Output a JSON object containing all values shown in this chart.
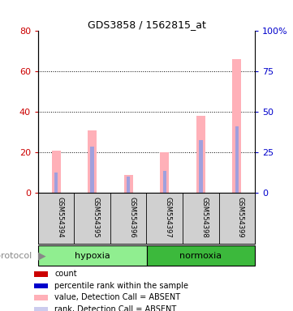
{
  "title": "GDS3858 / 1562815_at",
  "samples": [
    "GSM554394",
    "GSM554395",
    "GSM554396",
    "GSM554397",
    "GSM554398",
    "GSM554399"
  ],
  "groups": [
    "hypoxia",
    "hypoxia",
    "hypoxia",
    "normoxia",
    "normoxia",
    "normoxia"
  ],
  "hypoxia_color": "#90EE90",
  "normoxia_color": "#3CB93C",
  "pink_bar_values": [
    21,
    31,
    9,
    20,
    38,
    66
  ],
  "blue_bar_values": [
    10,
    23,
    8,
    11,
    26,
    33
  ],
  "left_yaxis_ticks": [
    0,
    20,
    40,
    60,
    80
  ],
  "right_yaxis_ticks": [
    0,
    25,
    50,
    75,
    100
  ],
  "left_yaxis_color": "#CC0000",
  "right_yaxis_color": "#0000CC",
  "dotted_line_values": [
    20,
    40,
    60
  ],
  "pink_color": "#FFB0B8",
  "blue_color": "#A0A0DD",
  "labels_bg": "#D0D0D0",
  "background_color": "#FFFFFF",
  "figsize": [
    3.61,
    3.84
  ],
  "dpi": 100
}
